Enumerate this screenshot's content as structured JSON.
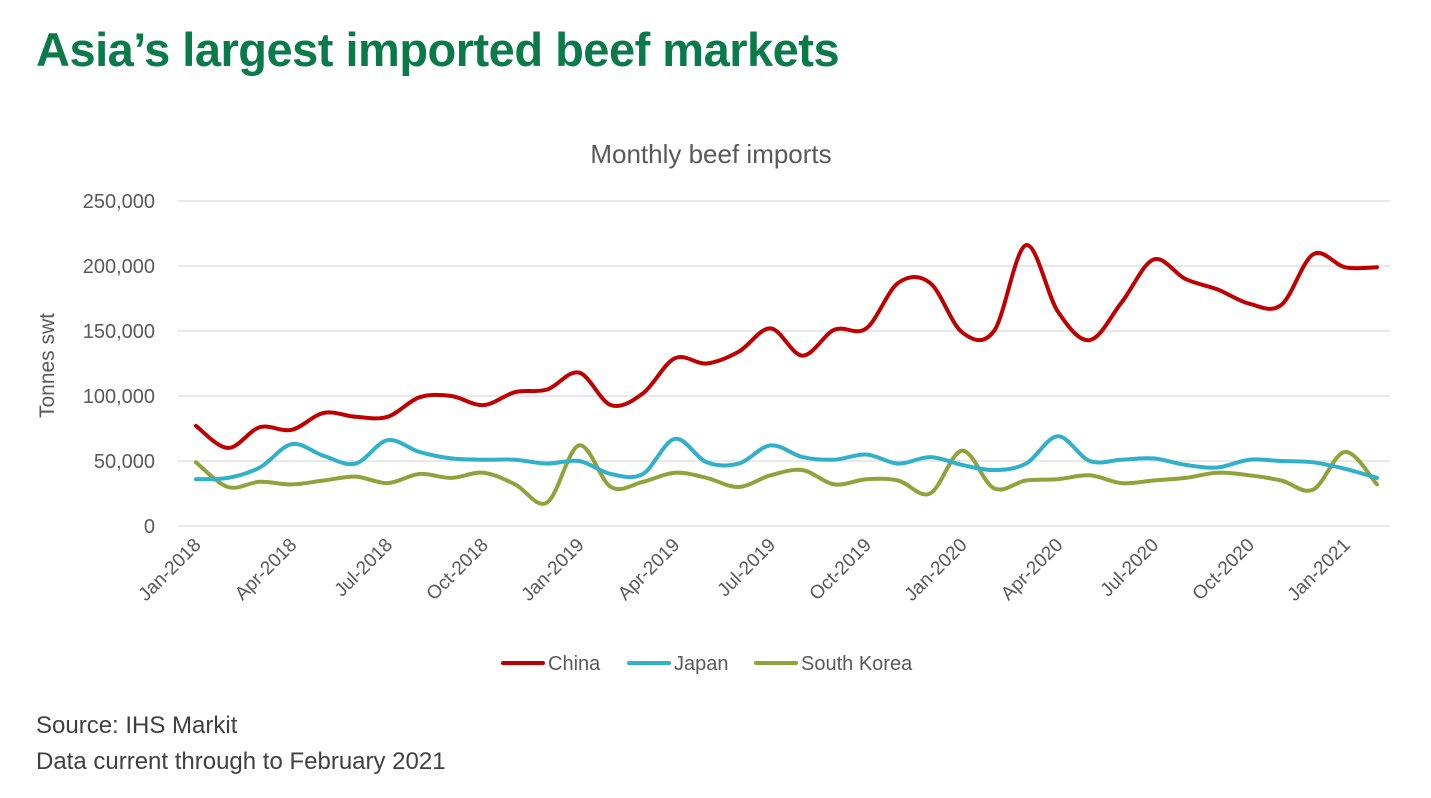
{
  "page": {
    "title": "Asia’s largest imported beef markets",
    "source": "Source: IHS Markit",
    "note": "Data current through to February 2021"
  },
  "chart_data": {
    "type": "line",
    "title": "Monthly beef imports",
    "xlabel": "",
    "ylabel": "Tonnes swt",
    "ylim": [
      0,
      250000
    ],
    "yticks": [
      0,
      50000,
      100000,
      150000,
      200000,
      250000
    ],
    "ytick_labels": [
      "0",
      "50,000",
      "100,000",
      "150,000",
      "200,000",
      "250,000"
    ],
    "x": [
      "Jan-2018",
      "Feb-2018",
      "Mar-2018",
      "Apr-2018",
      "May-2018",
      "Jun-2018",
      "Jul-2018",
      "Aug-2018",
      "Sep-2018",
      "Oct-2018",
      "Nov-2018",
      "Dec-2018",
      "Jan-2019",
      "Feb-2019",
      "Mar-2019",
      "Apr-2019",
      "May-2019",
      "Jun-2019",
      "Jul-2019",
      "Aug-2019",
      "Sep-2019",
      "Oct-2019",
      "Nov-2019",
      "Dec-2019",
      "Jan-2020",
      "Feb-2020",
      "Mar-2020",
      "Apr-2020",
      "May-2020",
      "Jun-2020",
      "Jul-2020",
      "Aug-2020",
      "Sep-2020",
      "Oct-2020",
      "Nov-2020",
      "Dec-2020",
      "Jan-2021",
      "Feb-2021"
    ],
    "xtick_labels": [
      "Jan-2018",
      "Apr-2018",
      "Jul-2018",
      "Oct-2018",
      "Jan-2019",
      "Apr-2019",
      "Jul-2019",
      "Oct-2019",
      "Jan-2020",
      "Apr-2020",
      "Jul-2020",
      "Oct-2020",
      "Jan-2021"
    ],
    "grid": true,
    "legend_position": "bottom",
    "series": [
      {
        "name": "China",
        "color": "#c00000",
        "values": [
          77000,
          60000,
          76000,
          74000,
          87000,
          84000,
          84000,
          99000,
          100000,
          93000,
          103000,
          105000,
          118000,
          93000,
          102000,
          129000,
          125000,
          134000,
          152000,
          131000,
          151000,
          152000,
          187000,
          187000,
          149000,
          150000,
          216000,
          165000,
          143000,
          172000,
          205000,
          190000,
          182000,
          171000,
          170000,
          209000,
          199000,
          199000
        ]
      },
      {
        "name": "Japan",
        "color": "#31b0c9",
        "values": [
          36000,
          37000,
          45000,
          63000,
          54000,
          48000,
          66000,
          57000,
          52000,
          51000,
          51000,
          48000,
          50000,
          40000,
          40000,
          67000,
          49000,
          48000,
          62000,
          53000,
          51000,
          55000,
          48000,
          53000,
          47000,
          43000,
          48000,
          69000,
          50000,
          51000,
          52000,
          47000,
          45000,
          51000,
          50000,
          49000,
          44000,
          37000
        ]
      },
      {
        "name": "South Korea",
        "color": "#8fa33a",
        "values": [
          49000,
          30000,
          34000,
          32000,
          35000,
          38000,
          33000,
          40000,
          37000,
          41000,
          32000,
          18000,
          62000,
          30000,
          34000,
          41000,
          37000,
          30000,
          39000,
          43000,
          32000,
          36000,
          35000,
          25000,
          58000,
          29000,
          35000,
          36000,
          39000,
          33000,
          35000,
          37000,
          41000,
          39000,
          35000,
          28000,
          57000,
          32000
        ]
      }
    ]
  }
}
